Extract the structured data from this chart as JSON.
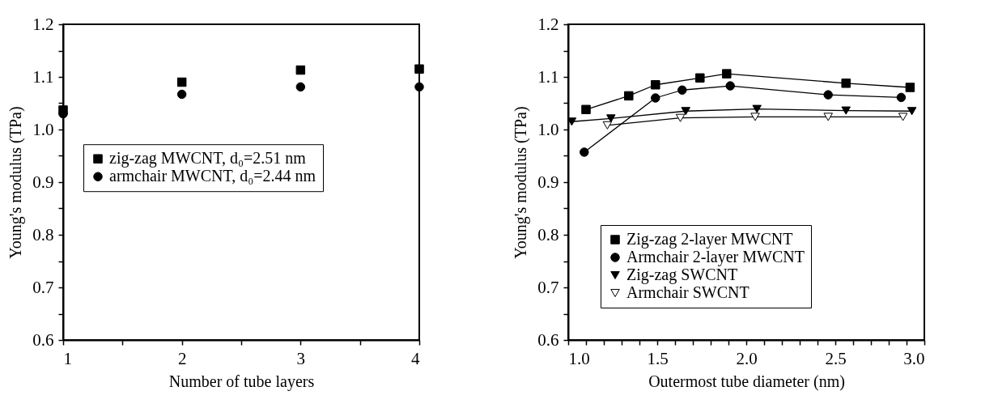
{
  "chart_data": [
    {
      "type": "scatter",
      "xlabel": "Number of tube layers",
      "ylabel": "Young's modulus (TPa)",
      "x": [
        1,
        2,
        3,
        4
      ],
      "series": [
        {
          "name": "zig-zag MWCNT, d₀=2.51 nm",
          "color": "#000000",
          "marker": "square",
          "values": [
            1.037,
            1.09,
            1.113,
            1.115
          ]
        },
        {
          "name": "armchair MWCNT, d₀=2.44 nm",
          "color": "#000000",
          "marker": "circle",
          "values": [
            1.03,
            1.067,
            1.081,
            1.081
          ]
        }
      ],
      "xlim": [
        1,
        4
      ],
      "xticks": [
        1,
        {
          "value": 1.5,
          "label": null
        },
        2,
        {
          "value": 2.5,
          "label": null
        },
        3,
        {
          "value": 3.5,
          "label": null
        },
        4
      ],
      "ylim": [
        0.6,
        1.2
      ],
      "yticks": [
        0.6,
        {
          "value": 0.65,
          "label": null
        },
        0.7,
        {
          "value": 0.75,
          "label": null
        },
        0.8,
        {
          "value": 0.85,
          "label": null
        },
        0.9,
        {
          "value": 0.95,
          "label": null
        },
        {
          "value": 1,
          "label": "1.0"
        },
        {
          "value": 1.05,
          "label": null
        },
        1.1,
        {
          "value": 1.15,
          "label": null
        },
        1.2
      ],
      "grid": false,
      "legend": "left"
    },
    {
      "type": "line",
      "xlabel": "Outermost tube diameter (nm)",
      "ylabel": "Young's modulus (TPa)",
      "series": [
        {
          "name": "Zig-zag 2-layer MWCNT",
          "color": "#000000",
          "marker": "square",
          "x": [
            1.1,
            1.34,
            1.49,
            1.74,
            1.89,
            2.56,
            2.92
          ],
          "values": [
            1.038,
            1.064,
            1.085,
            1.098,
            1.106,
            1.088,
            1.08
          ]
        },
        {
          "name": "Armchair 2-layer MWCNT",
          "color": "#000000",
          "marker": "circle",
          "x": [
            1.09,
            1.49,
            1.64,
            1.91,
            2.46,
            2.87
          ],
          "values": [
            0.957,
            1.06,
            1.075,
            1.083,
            1.066,
            1.061
          ]
        },
        {
          "name": "Zig-zag SWCNT",
          "color": "#000000",
          "marker": "triangle",
          "x": [
            1.02,
            1.24,
            1.66,
            2.06,
            2.56,
            2.93
          ],
          "values": [
            1.015,
            1.021,
            1.035,
            1.039,
            1.036,
            1.035
          ]
        },
        {
          "name": "Armchair SWCNT",
          "color": "#ffffff",
          "marker": "triangle",
          "x": [
            1.22,
            1.63,
            2.05,
            2.46,
            2.88
          ],
          "values": [
            1.008,
            1.022,
            1.024,
            1.024,
            1.024
          ]
        }
      ],
      "xlim": [
        1,
        3
      ],
      "xticks": [
        {
          "value": 1,
          "label": "1.0"
        },
        {
          "value": 1.1,
          "label": null
        },
        {
          "value": 1.2,
          "label": null
        },
        {
          "value": 1.3,
          "label": null
        },
        {
          "value": 1.4,
          "label": null
        },
        1.5,
        {
          "value": 1.6,
          "label": null
        },
        {
          "value": 1.7,
          "label": null
        },
        {
          "value": 1.8,
          "label": null
        },
        {
          "value": 1.9,
          "label": null
        },
        {
          "value": 2,
          "label": "2.0"
        },
        {
          "value": 2.1,
          "label": null
        },
        {
          "value": 2.2,
          "label": null
        },
        {
          "value": 2.3,
          "label": null
        },
        {
          "value": 2.4,
          "label": null
        },
        2.5,
        {
          "value": 2.6,
          "label": null
        },
        {
          "value": 2.7,
          "label": null
        },
        {
          "value": 2.8,
          "label": null
        },
        {
          "value": 2.9,
          "label": null
        },
        {
          "value": 3,
          "label": "3.0"
        }
      ],
      "ylim": [
        0.6,
        1.2
      ],
      "yticks": [
        0.6,
        {
          "value": 0.65,
          "label": null
        },
        0.7,
        {
          "value": 0.75,
          "label": null
        },
        0.8,
        {
          "value": 0.85,
          "label": null
        },
        0.9,
        {
          "value": 0.95,
          "label": null
        },
        {
          "value": 1,
          "label": "1.0"
        },
        {
          "value": 1.05,
          "label": null
        },
        1.1,
        {
          "value": 1.15,
          "label": null
        },
        1.2
      ],
      "grid": false,
      "legend": "bottom left"
    }
  ]
}
